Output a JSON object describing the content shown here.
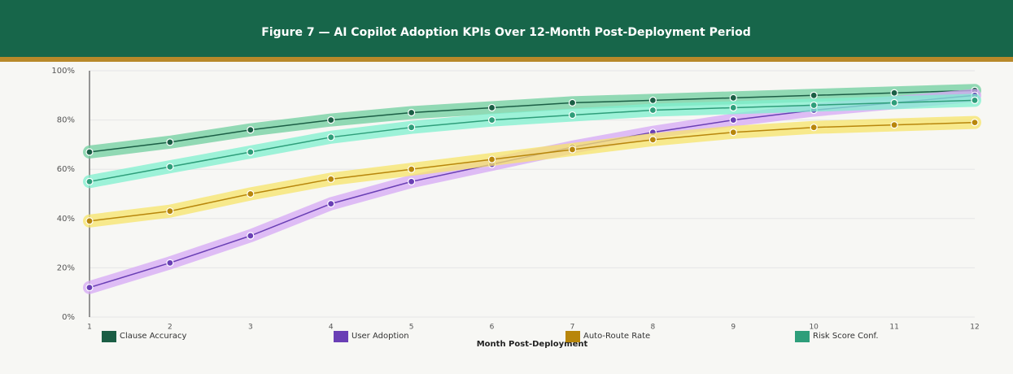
{
  "chart_data": {
    "type": "line",
    "title": "Figure 7  —  AI Copilot Adoption KPIs Over 12-Month Post-Deployment Period",
    "x_label": "Month Post-Deployment",
    "x": [
      1,
      2,
      3,
      4,
      5,
      6,
      7,
      8,
      9,
      10,
      11,
      12
    ],
    "xlim": [
      1,
      12
    ],
    "xticks": [
      1,
      2,
      3,
      4,
      5,
      6,
      7,
      8,
      9,
      10,
      11,
      12
    ],
    "ylim": [
      0,
      100
    ],
    "yticks": [
      {
        "value": 0,
        "label": "0%"
      },
      {
        "value": 20,
        "label": "20%"
      },
      {
        "value": 40,
        "label": "40%"
      },
      {
        "value": 60,
        "label": "60%"
      },
      {
        "value": 80,
        "label": "80%"
      },
      {
        "value": 100,
        "label": "100%"
      }
    ],
    "grid": true,
    "legend": "bottom",
    "series": [
      {
        "name": "Clause Accuracy",
        "color": "#1b5e45",
        "band_color": "#6fcf9f",
        "values": [
          67,
          71,
          76,
          80,
          83,
          85,
          87,
          88,
          89,
          90,
          91,
          92
        ]
      },
      {
        "name": "User Adoption",
        "color": "#6a3fb5",
        "band_color": "#d6a8f5",
        "values": [
          12,
          22,
          33,
          46,
          55,
          62,
          69,
          75,
          80,
          84,
          87,
          90
        ]
      },
      {
        "name": "Auto-Route Rate",
        "color": "#b8860b",
        "band_color": "#f7e46a",
        "values": [
          39,
          43,
          50,
          56,
          60,
          64,
          68,
          72,
          75,
          77,
          78,
          79
        ]
      },
      {
        "name": "Risk Score Conf.",
        "color": "#2e9e7a",
        "band_color": "#7ff0cf",
        "values": [
          55,
          61,
          67,
          73,
          77,
          80,
          82,
          84,
          85,
          86,
          87,
          88
        ]
      }
    ]
  }
}
